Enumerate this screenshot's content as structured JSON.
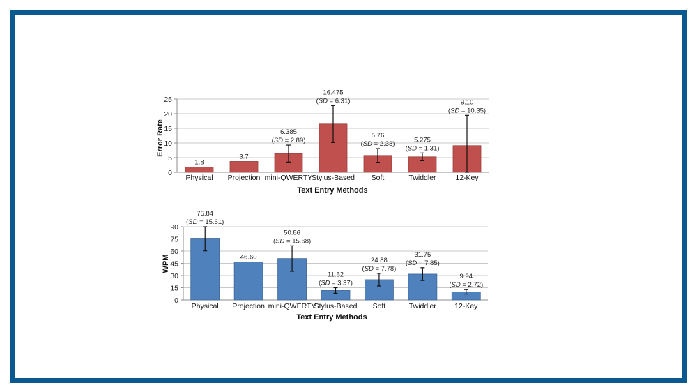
{
  "chart_data": [
    {
      "type": "bar",
      "title": "",
      "xlabel": "Text Entry Methods",
      "ylabel": "Error Rate",
      "ylim": [
        0,
        25
      ],
      "yticks": [
        0,
        5,
        10,
        15,
        20,
        25
      ],
      "grid": true,
      "color": "#c0504d",
      "categories": [
        "Physical",
        "Projection",
        "mini-QWERTY",
        "Stylus-Based",
        "Soft",
        "Twiddler",
        "12-Key"
      ],
      "values": [
        1.8,
        3.7,
        6.385,
        16.475,
        5.76,
        5.275,
        9.1
      ],
      "sd": [
        null,
        null,
        2.89,
        6.31,
        2.33,
        1.31,
        10.35
      ],
      "value_labels": [
        "1.8",
        "3.7",
        "6.385",
        "16.475",
        "5.76",
        "5.275",
        "9.10"
      ],
      "sd_labels": [
        "",
        "",
        "2.89",
        "6.31",
        "2.33",
        "1.31",
        "10.35"
      ]
    },
    {
      "type": "bar",
      "title": "",
      "xlabel": "Text Entry Methods",
      "ylabel": "WPM",
      "ylim": [
        0,
        90
      ],
      "yticks": [
        0,
        15,
        30,
        45,
        60,
        75,
        90
      ],
      "grid": true,
      "color": "#4f81bd",
      "categories": [
        "Physical",
        "Projection",
        "mini-QWERTY",
        "Stylus-Based",
        "Soft",
        "Twiddler",
        "12-Key"
      ],
      "values": [
        75.84,
        46.6,
        50.86,
        11.62,
        24.88,
        31.75,
        9.94
      ],
      "sd": [
        15.61,
        null,
        15.68,
        3.37,
        7.78,
        7.85,
        2.72
      ],
      "value_labels": [
        "75.84",
        "46.60",
        "50.86",
        "11.62",
        "24.88",
        "31.75",
        "9.94"
      ],
      "sd_labels": [
        "15.61",
        "",
        "15.68",
        "3.37",
        "7.78",
        "7.85",
        "2.72"
      ]
    }
  ],
  "sd_prefix": "SD",
  "sd_equals": " = "
}
